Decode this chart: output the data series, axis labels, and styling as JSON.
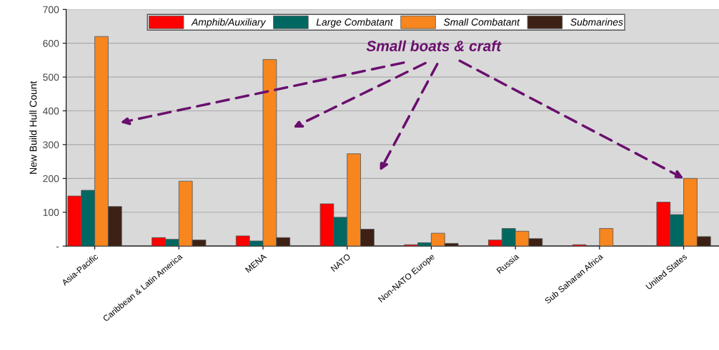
{
  "chart_data": {
    "type": "bar",
    "ylabel": "New Build Hull Count",
    "categories": [
      "Asia-Pacific",
      "Caribbean & Latin America",
      "MENA",
      "NATO",
      "Non-NATO Europe",
      "Russia",
      "Sub Saharan Africa",
      "United States"
    ],
    "series": [
      {
        "name": "Amphib/Auxiliary",
        "color": "#ff0000",
        "values": [
          148,
          25,
          30,
          125,
          4,
          18,
          4,
          130
        ]
      },
      {
        "name": "Large Combatant",
        "color": "#006860",
        "values": [
          165,
          20,
          15,
          85,
          10,
          52,
          0,
          93
        ]
      },
      {
        "name": "Small Combatant",
        "color": "#f7861f",
        "values": [
          620,
          192,
          552,
          273,
          38,
          44,
          52,
          200
        ]
      },
      {
        "name": "Submarines",
        "color": "#3d2114",
        "values": [
          117,
          18,
          25,
          50,
          8,
          22,
          0,
          28
        ]
      }
    ],
    "ylim": [
      0,
      700
    ],
    "yticks": [
      {
        "value": 0,
        "label": "-"
      },
      100,
      200,
      300,
      400,
      500,
      600,
      700
    ],
    "grid": "y",
    "legend": "top",
    "annotations": [
      {
        "text": "Small boats & craft",
        "x": "United States",
        "y": 200
      }
    ]
  }
}
